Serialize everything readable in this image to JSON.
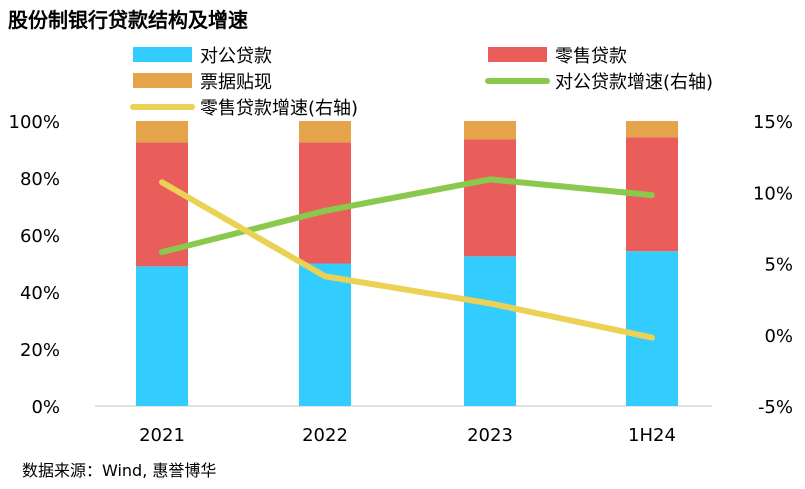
{
  "chart_data": {
    "type": "bar",
    "title": "股份制银行贷款结构及增速",
    "source": "数据来源：Wind, 惠誉博华",
    "categories": [
      "2021",
      "2022",
      "2023",
      "1H24"
    ],
    "series": [
      {
        "name": "对公贷款",
        "kind": "stacked-bar",
        "axis": "left",
        "color": "#33ccff",
        "values": [
          49,
          50,
          52.5,
          54.3
        ]
      },
      {
        "name": "零售贷款",
        "kind": "stacked-bar",
        "axis": "left",
        "color": "#e95e5a",
        "values": [
          43.5,
          42.5,
          41,
          40
        ]
      },
      {
        "name": "票据贴现",
        "kind": "stacked-bar",
        "axis": "left",
        "color": "#e5a34a",
        "values": [
          7.5,
          7.5,
          6.5,
          5.7
        ]
      },
      {
        "name": "对公贷款增速(右轴)",
        "kind": "line",
        "axis": "right",
        "color": "#8bc94e",
        "values": [
          5.8,
          8.7,
          10.9,
          9.8
        ]
      },
      {
        "name": "零售贷款增速(右轴)",
        "kind": "line",
        "axis": "right",
        "color": "#ebd154",
        "values": [
          10.7,
          4.1,
          2.2,
          -0.2
        ]
      }
    ],
    "left_axis": {
      "min": 0,
      "max": 100,
      "ticks": [
        "100%",
        "80%",
        "60%",
        "40%",
        "20%",
        "0%"
      ]
    },
    "right_axis": {
      "min": -5,
      "max": 15,
      "ticks": [
        "15%",
        "10%",
        "5%",
        "0%",
        "-5%"
      ]
    },
    "legend": {
      "position": "top",
      "order": [
        "对公贷款",
        "零售贷款",
        "票据贴现",
        "对公贷款增速(右轴)",
        "零售贷款增速(右轴)"
      ]
    }
  }
}
